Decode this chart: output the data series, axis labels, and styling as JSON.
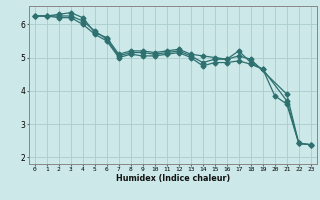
{
  "xlabel": "Humidex (Indice chaleur)",
  "bg_color": "#cce8e8",
  "grid_color": "#aacccc",
  "line_color": "#2e7070",
  "xlim": [
    -0.5,
    23.5
  ],
  "ylim": [
    1.8,
    6.55
  ],
  "xticks": [
    0,
    1,
    2,
    3,
    4,
    5,
    6,
    7,
    8,
    9,
    10,
    11,
    12,
    13,
    14,
    15,
    16,
    17,
    18,
    19,
    20,
    21,
    22,
    23
  ],
  "yticks": [
    2,
    3,
    4,
    5,
    6
  ],
  "series1_x": [
    0,
    1,
    2,
    3,
    4,
    5,
    6,
    7,
    8,
    9,
    10,
    11,
    12,
    13,
    14,
    15,
    16,
    17,
    18,
    21,
    22,
    23
  ],
  "series1_y": [
    6.25,
    6.25,
    6.3,
    6.35,
    6.2,
    5.75,
    5.6,
    5.1,
    5.2,
    5.2,
    5.15,
    5.2,
    5.25,
    5.1,
    5.05,
    5.0,
    4.95,
    5.05,
    4.95,
    3.9,
    2.42,
    2.38
  ],
  "series2_x": [
    0,
    1,
    2,
    3,
    4,
    5,
    6,
    7,
    8,
    9,
    10,
    11,
    12,
    13,
    14,
    15,
    16,
    17,
    18,
    19,
    20,
    21,
    22,
    23
  ],
  "series2_y": [
    6.25,
    6.25,
    6.25,
    6.25,
    6.1,
    5.8,
    5.55,
    5.05,
    5.15,
    5.15,
    5.1,
    5.15,
    5.2,
    5.05,
    4.85,
    4.95,
    4.95,
    5.2,
    4.85,
    4.65,
    3.85,
    3.6,
    2.42,
    2.38
  ],
  "series3_x": [
    0,
    1,
    2,
    3,
    4,
    5,
    6,
    7,
    8,
    9,
    10,
    11,
    12,
    13,
    14,
    15,
    16,
    17,
    18,
    19,
    21,
    22,
    23
  ],
  "series3_y": [
    6.25,
    6.25,
    6.2,
    6.2,
    6.0,
    5.7,
    5.5,
    5.0,
    5.1,
    5.05,
    5.05,
    5.1,
    5.15,
    5.0,
    4.75,
    4.85,
    4.85,
    4.9,
    4.8,
    4.65,
    3.7,
    2.42,
    2.38
  ]
}
